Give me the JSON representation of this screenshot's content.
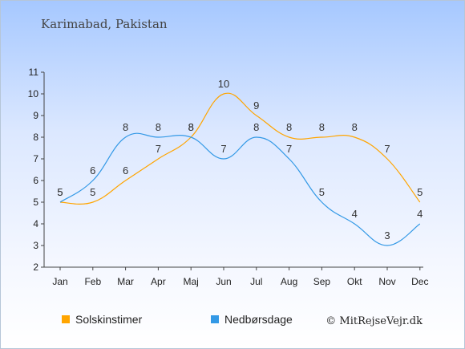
{
  "chart_data": {
    "type": "line",
    "subtitle": "Karimabad, Pakistan",
    "categories": [
      "Jan",
      "Feb",
      "Mar",
      "Apr",
      "Maj",
      "Jun",
      "Jul",
      "Aug",
      "Sep",
      "Okt",
      "Nov",
      "Dec"
    ],
    "ylim": [
      2,
      11
    ],
    "yticks": [
      2,
      3,
      4,
      5,
      6,
      7,
      8,
      9,
      10,
      11
    ],
    "grid": false,
    "legend_position": "bottom-left",
    "series": [
      {
        "name": "Solskinstimer",
        "color": "#ffa500",
        "values": [
          5,
          5,
          6,
          7,
          8,
          10,
          9,
          8,
          8,
          8,
          7,
          5
        ]
      },
      {
        "name": "Nedbørsdage",
        "color": "#3399e6",
        "values": [
          5,
          6,
          8,
          8,
          8,
          7,
          8,
          7,
          5,
          4,
          3,
          4
        ]
      }
    ],
    "credit": "© MitRejseVejr.dk"
  }
}
